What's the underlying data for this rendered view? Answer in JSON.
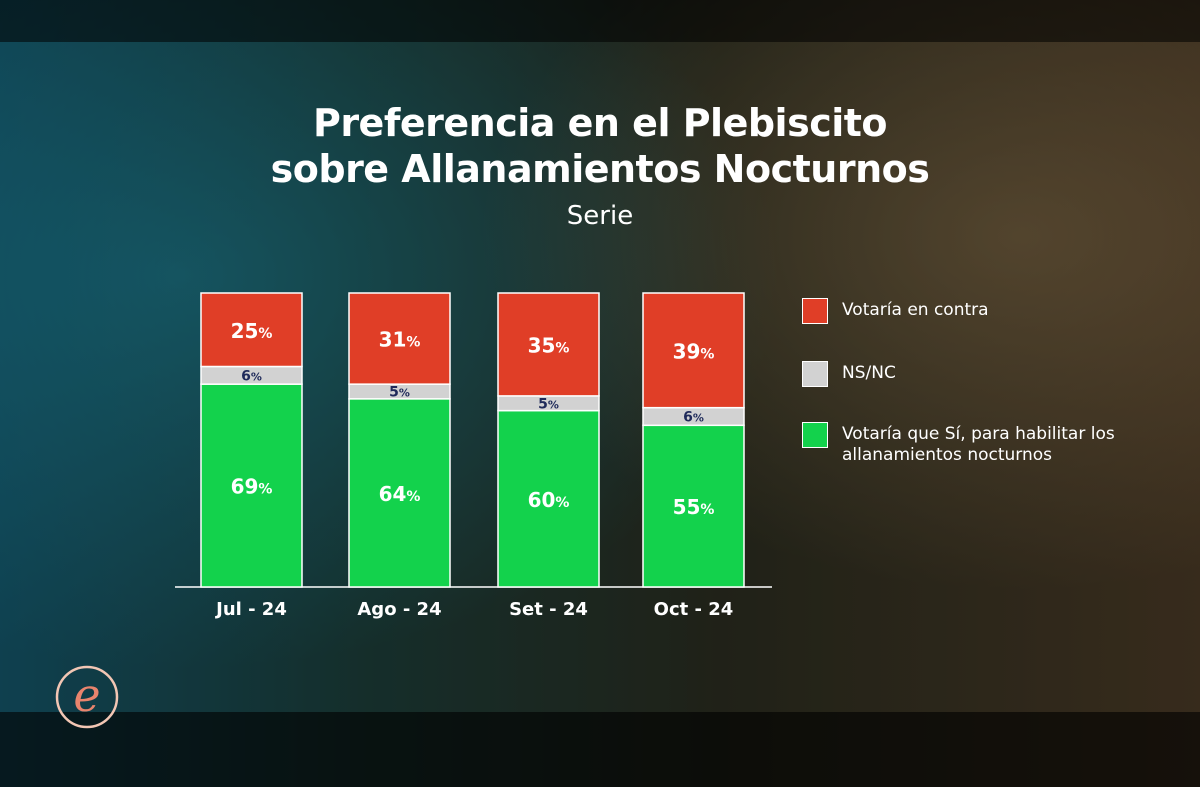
{
  "title_line1": "Preferencia en el Plebiscito",
  "title_line2": "sobre Allanamientos Nocturnos",
  "subtitle": "Serie",
  "logo": {
    "icon": "e-letter-logo-icon",
    "letter": "e"
  },
  "colors": {
    "contra": "#e03e27",
    "nsnc": "#d2d2d2",
    "si": "#13d24c",
    "pct_small_text": "#1f2a5a"
  },
  "legend": [
    {
      "label": "Votaría en contra",
      "color": "#e03e27"
    },
    {
      "label": "NS/NC",
      "color": "#d2d2d2"
    },
    {
      "label": "Votaría que Sí, para habilitar los allanamientos nocturnos",
      "color": "#13d24c"
    }
  ],
  "chart_data": {
    "type": "bar",
    "stacked": true,
    "title": "Preferencia en el Plebiscito sobre Allanamientos Nocturnos",
    "subtitle": "Serie",
    "categories": [
      "Jul - 24",
      "Ago - 24",
      "Set - 24",
      "Oct - 24"
    ],
    "series": [
      {
        "name": "Votaría que Sí, para habilitar los allanamientos nocturnos",
        "values": [
          69,
          64,
          60,
          55
        ]
      },
      {
        "name": "NS/NC",
        "values": [
          6,
          5,
          5,
          6
        ]
      },
      {
        "name": "Votaría en contra",
        "values": [
          25,
          31,
          35,
          39
        ]
      }
    ],
    "value_suffix": "%",
    "ylim": [
      0,
      100
    ],
    "legend_position": "right",
    "grid": false
  }
}
